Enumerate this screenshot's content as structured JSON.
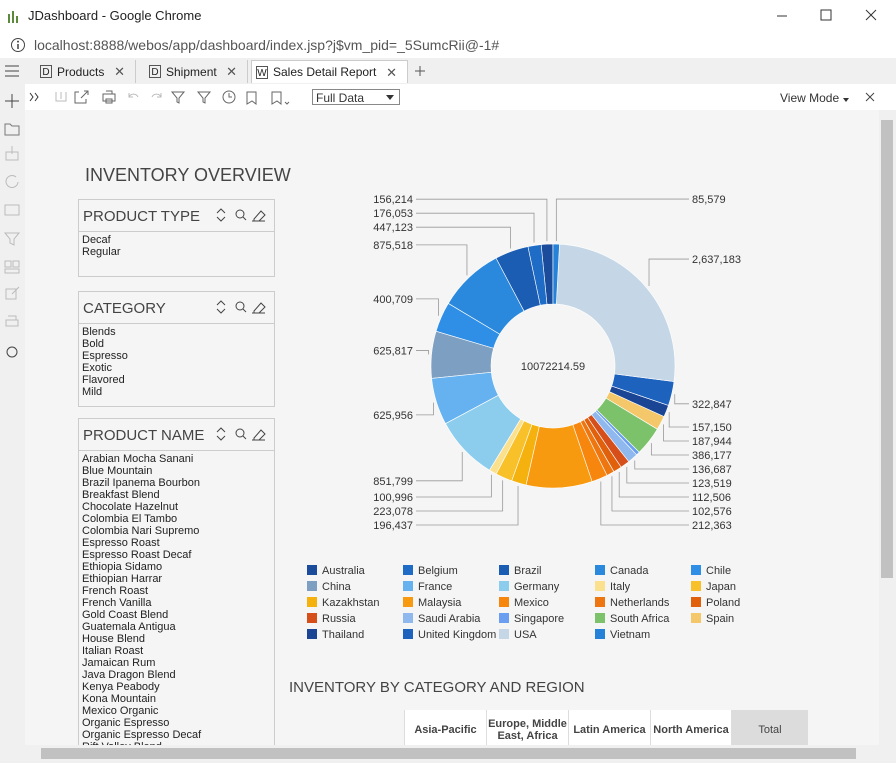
{
  "window": {
    "title": "JDashboard - Google Chrome",
    "url": "localhost:8888/webos/app/dashboard/index.jsp?j$vm_pid=_5SumcRii@-1#"
  },
  "tabs": [
    {
      "icon": "D",
      "label": "Products"
    },
    {
      "icon": "D",
      "label": "Shipment"
    },
    {
      "icon": "W",
      "label": "Sales Detail Report"
    }
  ],
  "toolbar": {
    "data_mode": "Full Data",
    "view_mode": "View Mode"
  },
  "title": "INVENTORY OVERVIEW",
  "filters": [
    {
      "title": "PRODUCT TYPE",
      "items": [
        "Decaf",
        "Regular"
      ]
    },
    {
      "title": "CATEGORY",
      "items": [
        "Blends",
        "Bold",
        "Espresso",
        "Exotic",
        "Flavored",
        "Mild"
      ]
    },
    {
      "title": "PRODUCT NAME",
      "items": [
        "Arabian Mocha Sanani",
        "Blue Mountain",
        "Brazil Ipanema Bourbon",
        "Breakfast Blend",
        "Chocolate Hazelnut",
        "Colombia El Tambo",
        "Colombia Nari Supremo",
        "Espresso Roast",
        "Espresso Roast Decaf",
        "Ethiopia Sidamo",
        "Ethiopian Harrar",
        "French Roast",
        "French Vanilla",
        "Gold Coast Blend",
        "Guatemala Antigua",
        "House Blend",
        "Italian Roast",
        "Jamaican Rum",
        "Java Dragon Blend",
        "Kenya Peabody",
        "Kona Mountain",
        "Mexico Organic",
        "Organic Espresso",
        "Organic Espresso Decaf",
        "Rift Valley Blend"
      ]
    }
  ],
  "chart_data": {
    "type": "donut",
    "center_label": "10072214.59",
    "categories": [
      "Australia",
      "Belgium",
      "Brazil",
      "Canada",
      "Chile",
      "China",
      "France",
      "Germany",
      "Italy",
      "Japan",
      "Kazakhstan",
      "Malaysia",
      "Mexico",
      "Netherlands",
      "Poland",
      "Russia",
      "Saudi Arabia",
      "Singapore",
      "South Africa",
      "Spain",
      "Thailand",
      "United Kingdom",
      "USA",
      "Vietnam"
    ],
    "values": [
      156214,
      176053,
      447123,
      875518,
      400709,
      625817,
      625956,
      851799,
      100996,
      223078,
      196437,
      880000,
      212363,
      102576,
      112506,
      123519,
      136687,
      47984,
      386177,
      187944,
      157150,
      322847,
      2637183,
      85579
    ],
    "value_labels": [
      "156,214",
      "176,053",
      "447,123",
      "875,518",
      "400,709",
      "625,817",
      "625,956",
      "851,799",
      "100,996",
      "223,078",
      "196,437",
      null,
      "212,363",
      "102,576",
      "112,506",
      "123,519",
      "136,687",
      null,
      "386,177",
      "187,944",
      "157,150",
      "322,847",
      "2,637,183",
      "85,579"
    ],
    "colors": [
      "#1b4c9c",
      "#1f6cc7",
      "#1a5db2",
      "#2a88dd",
      "#2f8fe6",
      "#7d9fc2",
      "#66b2f0",
      "#8ccdee",
      "#fbe08e",
      "#f8c12a",
      "#f5b20f",
      "#f89a10",
      "#f7860f",
      "#ee7610",
      "#e0600c",
      "#d64f1a",
      "#8fb8ee",
      "#6a9ef0",
      "#7cc26b",
      "#f4c86a",
      "#1a4594",
      "#1d62bd",
      "#c5d7e6",
      "#2582d8"
    ]
  },
  "table": {
    "title": "INVENTORY BY CATEGORY AND REGION",
    "headers": [
      "Asia-Pacific",
      "Europe, Middle East, Africa",
      "Latin America",
      "North America",
      "Total"
    ]
  }
}
